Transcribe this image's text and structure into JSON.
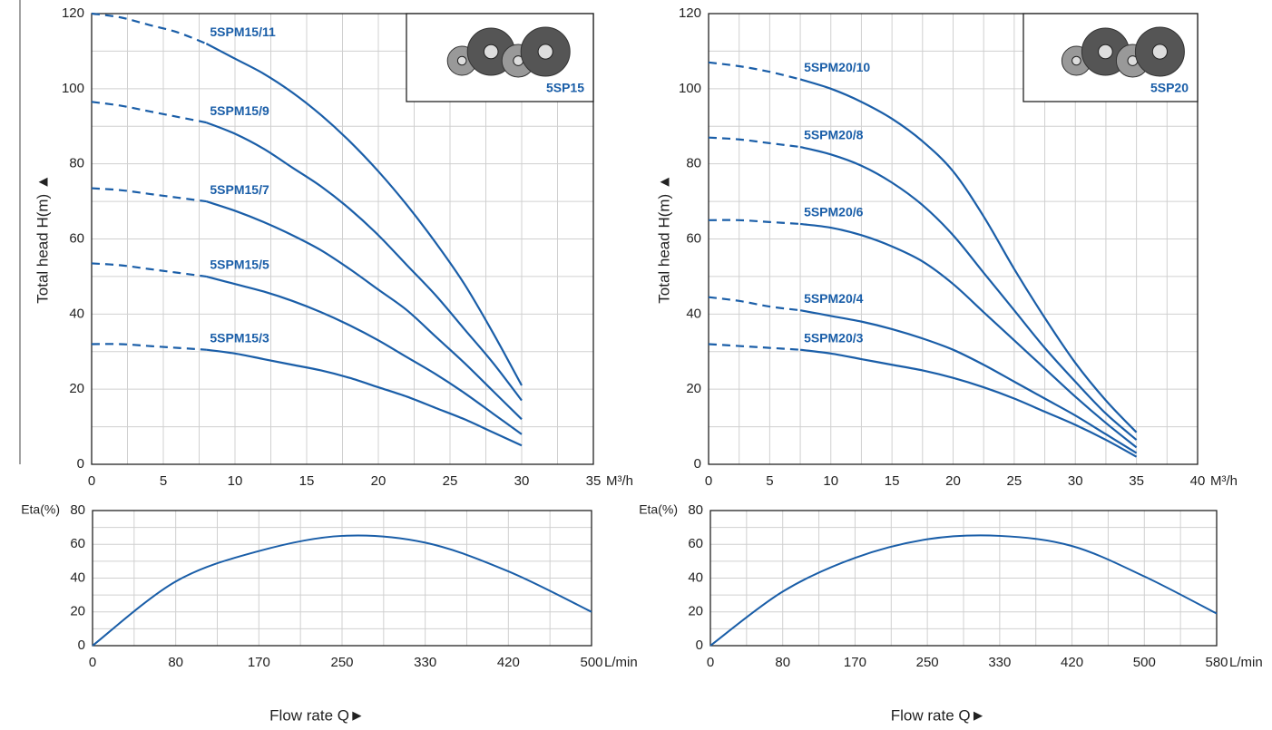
{
  "chart_data": [
    {
      "type": "line",
      "ylabel": "Total head H(m) ▲",
      "xunit": "M³/h",
      "inset_label": "5SP15",
      "grid": true,
      "color": "#1a5ea8",
      "dashed_to": 8,
      "xlim": [
        0,
        35
      ],
      "xticks": [
        0,
        5,
        10,
        15,
        20,
        25,
        30,
        35
      ],
      "ylim": [
        0,
        120
      ],
      "yticks": [
        0,
        20,
        40,
        60,
        80,
        100,
        120
      ],
      "x": [
        0,
        2,
        4,
        6,
        8,
        10,
        12,
        14,
        16,
        18,
        20,
        22,
        24,
        26,
        28,
        30
      ],
      "series": [
        {
          "name": "5SPM15/11",
          "values": [
            120,
            119,
            117,
            115,
            112,
            108,
            104,
            99,
            93,
            86,
            78,
            69,
            59,
            48,
            35,
            21
          ]
        },
        {
          "name": "5SPM15/9",
          "values": [
            96.5,
            95.5,
            94,
            92.5,
            91,
            88,
            84,
            79,
            74,
            68,
            61,
            53,
            45,
            36,
            27,
            17
          ]
        },
        {
          "name": "5SPM15/7",
          "values": [
            73.5,
            73,
            72,
            71,
            70,
            67.5,
            64.5,
            61,
            57,
            52,
            46.5,
            41,
            34,
            27,
            19.5,
            12
          ]
        },
        {
          "name": "5SPM15/5",
          "values": [
            53.5,
            53,
            52,
            51,
            50,
            48,
            46,
            43.5,
            40.5,
            37,
            33,
            28.5,
            24,
            19,
            13.5,
            8
          ]
        },
        {
          "name": "5SPM15/3",
          "values": [
            32,
            32,
            31.5,
            31,
            30.5,
            29.5,
            28,
            26.5,
            25,
            23,
            20.5,
            18,
            15,
            12,
            8.5,
            5
          ]
        }
      ]
    },
    {
      "type": "line",
      "ylabel": "Total head H(m) ▲",
      "xunit": "M³/h",
      "inset_label": "5SP20",
      "grid": true,
      "color": "#1a5ea8",
      "dashed_to": 7.5,
      "xlim": [
        0,
        40
      ],
      "xticks": [
        0,
        5,
        10,
        15,
        20,
        25,
        30,
        35,
        40
      ],
      "ylim": [
        0,
        120
      ],
      "yticks": [
        0,
        20,
        40,
        60,
        80,
        100,
        120
      ],
      "x": [
        0,
        2.5,
        5,
        7.5,
        10,
        12.5,
        15,
        17.5,
        20,
        22.5,
        25,
        27.5,
        30,
        32.5,
        35
      ],
      "series": [
        {
          "name": "5SPM20/10",
          "values": [
            107,
            106,
            104.5,
            102.5,
            100,
            96.5,
            92,
            86,
            78,
            66,
            52,
            39,
            27,
            17,
            8.5
          ]
        },
        {
          "name": "5SPM20/8",
          "values": [
            87,
            86.5,
            85.5,
            84.5,
            82.5,
            79.5,
            75,
            69,
            61,
            51,
            41,
            31,
            22,
            13.5,
            6.5
          ]
        },
        {
          "name": "5SPM20/6",
          "values": [
            65,
            65,
            64.5,
            64,
            63,
            61,
            58,
            54,
            48,
            40.5,
            33,
            25.5,
            18,
            11,
            4.5
          ]
        },
        {
          "name": "5SPM20/4",
          "values": [
            44.5,
            43.5,
            42,
            41,
            39.5,
            38,
            36,
            33.5,
            30.5,
            26.5,
            22,
            17.5,
            13,
            8,
            3
          ]
        },
        {
          "name": "5SPM20/3",
          "values": [
            32,
            31.5,
            31,
            30.5,
            29.5,
            28,
            26.5,
            25,
            23,
            20.5,
            17.5,
            14,
            10.5,
            6.5,
            2
          ]
        }
      ]
    },
    {
      "type": "line",
      "ylabel": "Eta(%)",
      "xunit": "L/min",
      "xlabel": "Flow rate Q►",
      "grid": true,
      "color": "#1a5ea8",
      "categories": [
        0,
        80,
        170,
        250,
        330,
        420,
        500
      ],
      "values": [
        0,
        38,
        56,
        65,
        61,
        44,
        20
      ],
      "ylim": [
        0,
        80
      ],
      "yticks": [
        0,
        20,
        40,
        60,
        80
      ]
    },
    {
      "type": "line",
      "ylabel": "Eta(%)",
      "xunit": "L/min",
      "xlabel": "Flow rate Q►",
      "grid": true,
      "color": "#1a5ea8",
      "categories": [
        0,
        80,
        170,
        250,
        330,
        420,
        500,
        580
      ],
      "values": [
        0,
        32,
        52,
        63,
        65,
        59,
        41,
        19
      ],
      "ylim": [
        0,
        80
      ],
      "yticks": [
        0,
        20,
        40,
        60,
        80
      ]
    }
  ]
}
